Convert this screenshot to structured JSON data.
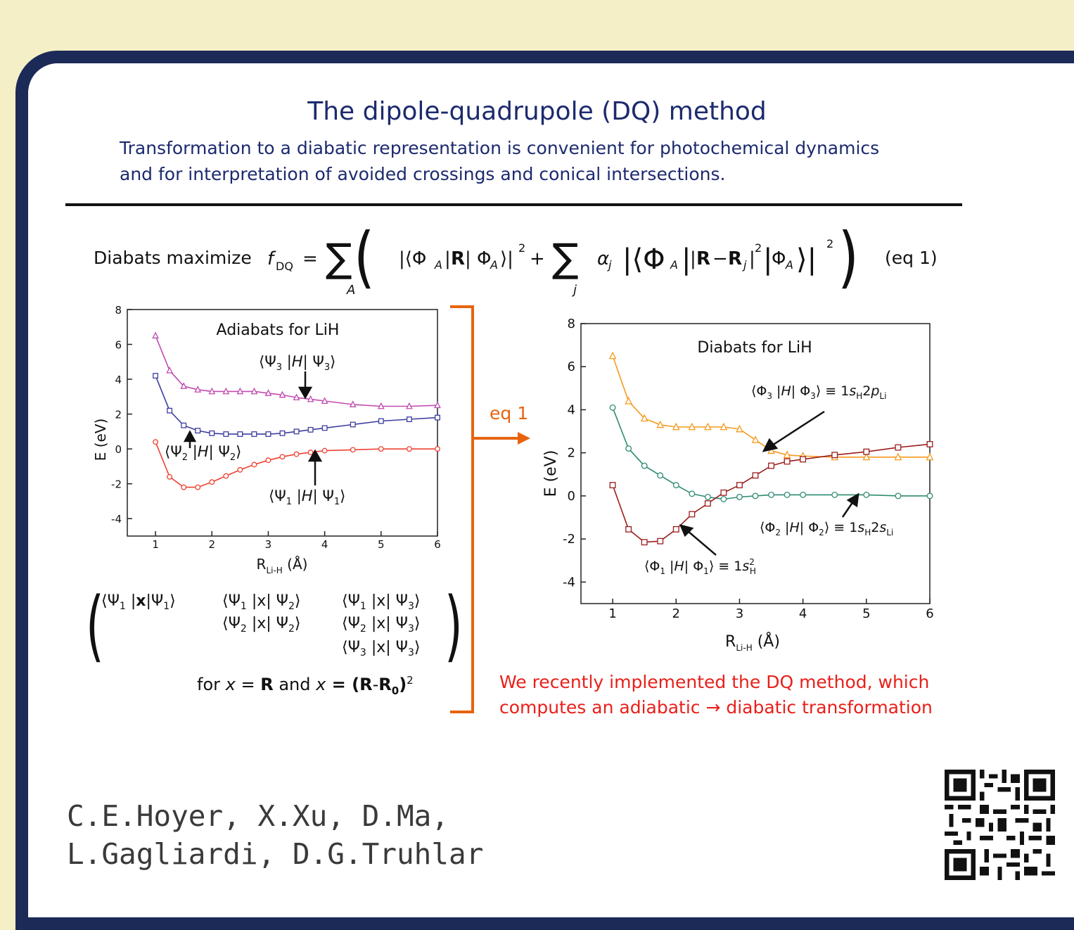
{
  "slide": {
    "title": "The dipole-quadrupole (DQ) method",
    "subtitle_line1": "Transformation to a diabatic representation is convenient for photochemical dynamics",
    "subtitle_line2": "and for interpretation of avoided crossings and conical intersections.",
    "diabats_label": "Diabats maximize",
    "eq1_label": "(eq 1)",
    "arrow_label": "eq 1",
    "for_line": {
      "for_text": "for ",
      "x1": "x",
      "eq1": " = ",
      "R": "R",
      "and_text": " and ",
      "x2": "x",
      "eq2": " = (",
      "R2": "R",
      "minus": "-",
      "R0": "R",
      "sub0": "0",
      "close": ")",
      "sup2": "2"
    },
    "note_line1": "We recently implemented the DQ method, which",
    "note_line2": "computes an adiabatic → diabatic transformation",
    "authors_line1": "C.E.Hoyer, X.Xu, D.Ma,",
    "authors_line2": "L.Gagliardi, D.G.Truhlar"
  },
  "colors": {
    "background": "#f4efc7",
    "frame": "#1c2a57",
    "title": "#1c2a6e",
    "arrow": "#e8630e",
    "note": "#e8201a"
  },
  "chart_data": [
    {
      "type": "line",
      "title": "Adiabats for LiH",
      "xlabel": "R_Li-H (Å)",
      "ylabel": "E (eV)",
      "xlim": [
        0.5,
        6
      ],
      "ylim": [
        -5,
        8
      ],
      "xticks": [
        1,
        2,
        3,
        4,
        5,
        6
      ],
      "yticks": [
        8,
        6,
        4,
        2,
        0,
        -2,
        -4
      ],
      "series": [
        {
          "name": "⟨Ψ3 |H| Ψ3⟩",
          "color": "#c04bb0",
          "marker": "triangle",
          "x": [
            1.0,
            1.25,
            1.5,
            1.75,
            2.0,
            2.25,
            2.5,
            2.75,
            3.0,
            3.25,
            3.5,
            3.75,
            4.0,
            4.5,
            5.0,
            5.5,
            6.0
          ],
          "y": [
            6.5,
            4.5,
            3.6,
            3.4,
            3.3,
            3.3,
            3.3,
            3.3,
            3.2,
            3.1,
            2.95,
            2.85,
            2.75,
            2.55,
            2.45,
            2.45,
            2.5
          ]
        },
        {
          "name": "⟨Ψ2 |H| Ψ2⟩",
          "color": "#3d3da0",
          "marker": "square",
          "x": [
            1.0,
            1.25,
            1.5,
            1.75,
            2.0,
            2.25,
            2.5,
            2.75,
            3.0,
            3.25,
            3.5,
            3.75,
            4.0,
            4.5,
            5.0,
            5.5,
            6.0
          ],
          "y": [
            4.2,
            2.2,
            1.35,
            1.05,
            0.9,
            0.85,
            0.85,
            0.85,
            0.85,
            0.9,
            1.0,
            1.1,
            1.2,
            1.4,
            1.6,
            1.7,
            1.8
          ]
        },
        {
          "name": "⟨Ψ1 |H| Ψ1⟩",
          "color": "#ee4233",
          "marker": "circle",
          "x": [
            1.0,
            1.25,
            1.5,
            1.75,
            2.0,
            2.25,
            2.5,
            2.75,
            3.0,
            3.25,
            3.5,
            3.75,
            4.0,
            4.5,
            5.0,
            5.5,
            6.0
          ],
          "y": [
            0.4,
            -1.6,
            -2.2,
            -2.2,
            -1.9,
            -1.55,
            -1.2,
            -0.9,
            -0.65,
            -0.45,
            -0.3,
            -0.2,
            -0.1,
            -0.05,
            0.0,
            0.0,
            0.0
          ]
        }
      ]
    },
    {
      "type": "line",
      "title": "Diabats for LiH",
      "xlabel": "R_Li-H (Å)",
      "ylabel": "E (eV)",
      "xlim": [
        0.5,
        6
      ],
      "ylim": [
        -5,
        8
      ],
      "xticks": [
        1,
        2,
        3,
        4,
        5,
        6
      ],
      "yticks": [
        8,
        6,
        4,
        2,
        0,
        -2,
        -4
      ],
      "series": [
        {
          "name": "⟨Φ3 |H| Φ3⟩ ≡ 1sH2pLi",
          "color": "#f59a1d",
          "marker": "triangle",
          "x": [
            1.0,
            1.25,
            1.5,
            1.75,
            2.0,
            2.25,
            2.5,
            2.75,
            3.0,
            3.25,
            3.5,
            3.75,
            4.0,
            4.5,
            5.0,
            5.5,
            6.0
          ],
          "y": [
            6.5,
            4.4,
            3.6,
            3.3,
            3.2,
            3.2,
            3.2,
            3.2,
            3.1,
            2.6,
            2.1,
            1.9,
            1.85,
            1.8,
            1.8,
            1.8,
            1.8
          ]
        },
        {
          "name": "⟨Φ2 |H| Φ2⟩ ≡ 1sH2sLi",
          "color": "#2e8b72",
          "marker": "circle",
          "x": [
            1.0,
            1.25,
            1.5,
            1.75,
            2.0,
            2.25,
            2.5,
            2.75,
            3.0,
            3.25,
            3.5,
            3.75,
            4.0,
            4.5,
            5.0,
            5.5,
            6.0
          ],
          "y": [
            4.1,
            2.2,
            1.4,
            0.95,
            0.5,
            0.1,
            -0.05,
            -0.15,
            -0.05,
            0.0,
            0.05,
            0.05,
            0.05,
            0.05,
            0.05,
            0.0,
            0.0
          ]
        },
        {
          "name": "⟨Φ1 |H| Φ1⟩ ≡ 1sH²",
          "color": "#9b1c1c",
          "marker": "square",
          "x": [
            1.0,
            1.25,
            1.5,
            1.75,
            2.0,
            2.25,
            2.5,
            2.75,
            3.0,
            3.25,
            3.5,
            3.75,
            4.0,
            4.5,
            5.0,
            5.5,
            6.0
          ],
          "y": [
            0.5,
            -1.55,
            -2.15,
            -2.1,
            -1.55,
            -0.85,
            -0.35,
            0.15,
            0.5,
            0.95,
            1.4,
            1.6,
            1.7,
            1.9,
            2.05,
            2.25,
            2.4
          ]
        }
      ]
    }
  ]
}
